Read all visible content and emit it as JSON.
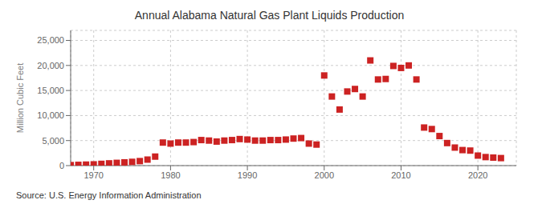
{
  "chart_data": {
    "type": "scatter",
    "title": "Annual Alabama Natural Gas Plant Liquids Production",
    "ylabel": "Million Cubic Feet",
    "source": "Source: U.S. Energy Information Administration",
    "x": [
      1967,
      1968,
      1969,
      1970,
      1971,
      1972,
      1973,
      1974,
      1975,
      1976,
      1977,
      1978,
      1979,
      1980,
      1981,
      1982,
      1983,
      1984,
      1985,
      1986,
      1987,
      1988,
      1989,
      1990,
      1991,
      1992,
      1993,
      1994,
      1995,
      1996,
      1997,
      1998,
      1999,
      2000,
      2001,
      2002,
      2003,
      2004,
      2005,
      2006,
      2007,
      2008,
      2009,
      2010,
      2011,
      2012,
      2013,
      2014,
      2015,
      2016,
      2017,
      2018,
      2019,
      2020,
      2021,
      2022,
      2023
    ],
    "values": [
      100,
      150,
      200,
      250,
      350,
      450,
      550,
      650,
      750,
      900,
      1200,
      1800,
      4600,
      4400,
      4600,
      4600,
      4700,
      5100,
      5000,
      4800,
      5000,
      5100,
      5300,
      5200,
      5000,
      5000,
      5100,
      5100,
      5200,
      5400,
      5500,
      4400,
      4200,
      18000,
      13800,
      11200,
      14800,
      15300,
      13800,
      21000,
      17200,
      17300,
      19900,
      19500,
      20000,
      17200,
      7600,
      7300,
      5900,
      4500,
      3600,
      3100,
      3000,
      2000,
      1700,
      1600,
      1500
    ],
    "color": "#cc2222",
    "marker": "square",
    "xlim": [
      1967,
      2025
    ],
    "xticks": [
      1970,
      1980,
      1990,
      2000,
      2010,
      2020
    ],
    "ylim": [
      0,
      27000
    ],
    "yticks": [
      0,
      {
        "value": 5000,
        "label": "5,000"
      },
      {
        "value": 10000,
        "label": "10,000"
      },
      {
        "value": 15000,
        "label": "15,000"
      },
      {
        "value": 20000,
        "label": "20,000"
      },
      {
        "value": 25000,
        "label": "25,000"
      }
    ],
    "grid": true
  }
}
